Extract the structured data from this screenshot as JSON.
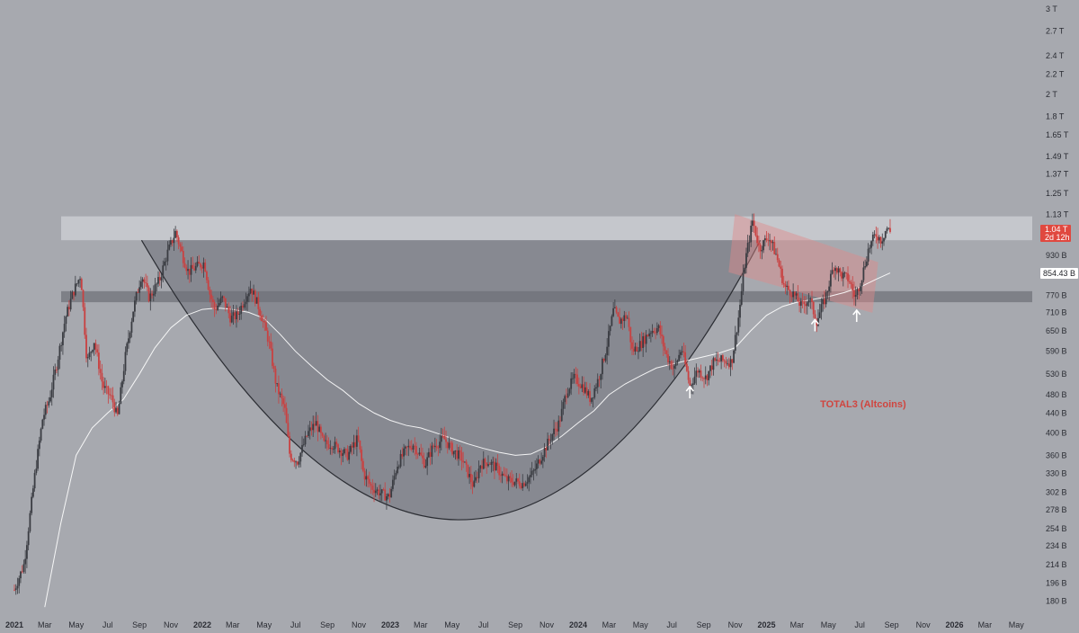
{
  "chart_data": {
    "type": "candlestick",
    "title": "",
    "xlabel": "",
    "ylabel": "",
    "scale": "log",
    "ylim": [
      170,
      3000
    ],
    "xlim": [
      "2021-01",
      "2026-06"
    ],
    "x_ticks": [
      {
        "date": "2021-01",
        "label": "2021",
        "year": true
      },
      {
        "date": "2021-03",
        "label": "Mar"
      },
      {
        "date": "2021-05",
        "label": "May"
      },
      {
        "date": "2021-07",
        "label": "Jul"
      },
      {
        "date": "2021-09",
        "label": "Sep"
      },
      {
        "date": "2021-11",
        "label": "Nov"
      },
      {
        "date": "2022-01",
        "label": "2022",
        "year": true
      },
      {
        "date": "2022-03",
        "label": "Mar"
      },
      {
        "date": "2022-05",
        "label": "May"
      },
      {
        "date": "2022-07",
        "label": "Jul"
      },
      {
        "date": "2022-09",
        "label": "Sep"
      },
      {
        "date": "2022-11",
        "label": "Nov"
      },
      {
        "date": "2023-01",
        "label": "2023",
        "year": true
      },
      {
        "date": "2023-03",
        "label": "Mar"
      },
      {
        "date": "2023-05",
        "label": "May"
      },
      {
        "date": "2023-07",
        "label": "Jul"
      },
      {
        "date": "2023-09",
        "label": "Sep"
      },
      {
        "date": "2023-11",
        "label": "Nov"
      },
      {
        "date": "2024-01",
        "label": "2024",
        "year": true
      },
      {
        "date": "2024-03",
        "label": "Mar"
      },
      {
        "date": "2024-05",
        "label": "May"
      },
      {
        "date": "2024-07",
        "label": "Jul"
      },
      {
        "date": "2024-09",
        "label": "Sep"
      },
      {
        "date": "2024-11",
        "label": "Nov"
      },
      {
        "date": "2025-01",
        "label": "2025",
        "year": true
      },
      {
        "date": "2025-03",
        "label": "Mar"
      },
      {
        "date": "2025-05",
        "label": "May"
      },
      {
        "date": "2025-07",
        "label": "Jul"
      },
      {
        "date": "2025-09",
        "label": "Sep"
      },
      {
        "date": "2025-11",
        "label": "Nov"
      },
      {
        "date": "2026-01",
        "label": "2026",
        "year": true
      },
      {
        "date": "2026-03",
        "label": "Mar"
      },
      {
        "date": "2026-05",
        "label": "May"
      }
    ],
    "y_ticks": [
      {
        "value": 3000,
        "label": "3 T"
      },
      {
        "value": 2700,
        "label": "2.7 T"
      },
      {
        "value": 2400,
        "label": "2.4 T"
      },
      {
        "value": 2200,
        "label": "2.2 T"
      },
      {
        "value": 2000,
        "label": "2 T"
      },
      {
        "value": 1800,
        "label": "1.8 T"
      },
      {
        "value": 1650,
        "label": "1.65 T"
      },
      {
        "value": 1490,
        "label": "1.49 T"
      },
      {
        "value": 1370,
        "label": "1.37 T"
      },
      {
        "value": 1250,
        "label": "1.25 T"
      },
      {
        "value": 1130,
        "label": "1.13 T"
      },
      {
        "value": 930,
        "label": "930 B"
      },
      {
        "value": 770,
        "label": "770 B"
      },
      {
        "value": 710,
        "label": "710 B"
      },
      {
        "value": 650,
        "label": "650 B"
      },
      {
        "value": 590,
        "label": "590 B"
      },
      {
        "value": 530,
        "label": "530 B"
      },
      {
        "value": 480,
        "label": "480 B"
      },
      {
        "value": 440,
        "label": "440 B"
      },
      {
        "value": 400,
        "label": "400 B"
      },
      {
        "value": 360,
        "label": "360 B"
      },
      {
        "value": 330,
        "label": "330 B"
      },
      {
        "value": 302,
        "label": "302 B"
      },
      {
        "value": 278,
        "label": "278 B"
      },
      {
        "value": 254,
        "label": "254 B"
      },
      {
        "value": 234,
        "label": "234 B"
      },
      {
        "value": 214,
        "label": "214 B"
      },
      {
        "value": 196,
        "label": "196 B"
      },
      {
        "value": 180,
        "label": "180 B"
      }
    ],
    "price_path": [
      [
        "2021-01-01",
        190
      ],
      [
        "2021-01-20",
        215
      ],
      [
        "2021-02-10",
        330
      ],
      [
        "2021-02-25",
        430
      ],
      [
        "2021-03-10",
        470
      ],
      [
        "2021-03-25",
        560
      ],
      [
        "2021-04-10",
        690
      ],
      [
        "2021-04-25",
        780
      ],
      [
        "2021-05-10",
        850
      ],
      [
        "2021-05-22",
        560
      ],
      [
        "2021-06-05",
        620
      ],
      [
        "2021-06-22",
        500
      ],
      [
        "2021-07-10",
        470
      ],
      [
        "2021-07-20",
        430
      ],
      [
        "2021-08-05",
        580
      ],
      [
        "2021-08-20",
        720
      ],
      [
        "2021-09-05",
        850
      ],
      [
        "2021-09-20",
        760
      ],
      [
        "2021-10-10",
        830
      ],
      [
        "2021-10-25",
        940
      ],
      [
        "2021-11-10",
        1040
      ],
      [
        "2021-11-25",
        920
      ],
      [
        "2021-12-05",
        860
      ],
      [
        "2021-12-20",
        880
      ],
      [
        "2022-01-05",
        900
      ],
      [
        "2022-01-15",
        780
      ],
      [
        "2022-01-25",
        720
      ],
      [
        "2022-02-10",
        760
      ],
      [
        "2022-02-25",
        690
      ],
      [
        "2022-03-10",
        700
      ],
      [
        "2022-03-25",
        760
      ],
      [
        "2022-04-05",
        800
      ],
      [
        "2022-04-20",
        730
      ],
      [
        "2022-05-10",
        620
      ],
      [
        "2022-05-25",
        500
      ],
      [
        "2022-06-10",
        450
      ],
      [
        "2022-06-20",
        360
      ],
      [
        "2022-07-05",
        350
      ],
      [
        "2022-07-25",
        400
      ],
      [
        "2022-08-10",
        420
      ],
      [
        "2022-08-25",
        380
      ],
      [
        "2022-09-10",
        380
      ],
      [
        "2022-09-25",
        370
      ],
      [
        "2022-10-10",
        360
      ],
      [
        "2022-10-30",
        390
      ],
      [
        "2022-11-10",
        330
      ],
      [
        "2022-11-25",
        310
      ],
      [
        "2022-12-15",
        300
      ],
      [
        "2022-12-30",
        295
      ],
      [
        "2023-01-15",
        345
      ],
      [
        "2023-02-01",
        370
      ],
      [
        "2023-02-15",
        380
      ],
      [
        "2023-03-10",
        345
      ],
      [
        "2023-03-25",
        375
      ],
      [
        "2023-04-15",
        390
      ],
      [
        "2023-05-01",
        370
      ],
      [
        "2023-05-20",
        355
      ],
      [
        "2023-06-12",
        310
      ],
      [
        "2023-06-25",
        345
      ],
      [
        "2023-07-10",
        350
      ],
      [
        "2023-07-25",
        340
      ],
      [
        "2023-08-15",
        320
      ],
      [
        "2023-08-30",
        318
      ],
      [
        "2023-09-15",
        315
      ],
      [
        "2023-10-05",
        330
      ],
      [
        "2023-10-25",
        365
      ],
      [
        "2023-11-10",
        395
      ],
      [
        "2023-11-25",
        420
      ],
      [
        "2023-12-10",
        490
      ],
      [
        "2023-12-25",
        520
      ],
      [
        "2024-01-10",
        500
      ],
      [
        "2024-01-25",
        470
      ],
      [
        "2024-02-10",
        520
      ],
      [
        "2024-02-25",
        600
      ],
      [
        "2024-03-10",
        720
      ],
      [
        "2024-03-20",
        680
      ],
      [
        "2024-04-05",
        700
      ],
      [
        "2024-04-15",
        590
      ],
      [
        "2024-05-01",
        610
      ],
      [
        "2024-05-20",
        650
      ],
      [
        "2024-06-05",
        660
      ],
      [
        "2024-06-20",
        580
      ],
      [
        "2024-07-05",
        540
      ],
      [
        "2024-07-20",
        600
      ],
      [
        "2024-08-05",
        500
      ],
      [
        "2024-08-20",
        540
      ],
      [
        "2024-09-05",
        520
      ],
      [
        "2024-09-20",
        560
      ],
      [
        "2024-10-05",
        565
      ],
      [
        "2024-10-25",
        560
      ],
      [
        "2024-11-08",
        700
      ],
      [
        "2024-11-20",
        900
      ],
      [
        "2024-12-05",
        1100
      ],
      [
        "2024-12-18",
        960
      ],
      [
        "2025-01-05",
        1020
      ],
      [
        "2025-01-20",
        930
      ],
      [
        "2025-02-05",
        800
      ],
      [
        "2025-02-20",
        780
      ],
      [
        "2025-03-10",
        730
      ],
      [
        "2025-03-25",
        760
      ],
      [
        "2025-04-08",
        680
      ],
      [
        "2025-04-25",
        760
      ],
      [
        "2025-05-12",
        890
      ],
      [
        "2025-05-25",
        850
      ],
      [
        "2025-06-10",
        830
      ],
      [
        "2025-06-22",
        760
      ],
      [
        "2025-07-05",
        840
      ],
      [
        "2025-07-18",
        960
      ],
      [
        "2025-08-01",
        1030
      ],
      [
        "2025-08-12",
        1000
      ],
      [
        "2025-08-22",
        1060
      ],
      [
        "2025-08-29",
        1040
      ]
    ],
    "ma_path": [
      [
        "2021-03-01",
        175
      ],
      [
        "2021-04-01",
        260
      ],
      [
        "2021-05-01",
        360
      ],
      [
        "2021-06-01",
        410
      ],
      [
        "2021-07-01",
        440
      ],
      [
        "2021-08-01",
        470
      ],
      [
        "2021-09-01",
        530
      ],
      [
        "2021-10-01",
        600
      ],
      [
        "2021-11-01",
        660
      ],
      [
        "2021-12-01",
        700
      ],
      [
        "2022-01-01",
        720
      ],
      [
        "2022-02-01",
        725
      ],
      [
        "2022-03-01",
        720
      ],
      [
        "2022-04-01",
        710
      ],
      [
        "2022-05-01",
        690
      ],
      [
        "2022-06-01",
        640
      ],
      [
        "2022-07-01",
        590
      ],
      [
        "2022-08-01",
        550
      ],
      [
        "2022-09-01",
        515
      ],
      [
        "2022-10-01",
        490
      ],
      [
        "2022-11-01",
        460
      ],
      [
        "2022-12-01",
        440
      ],
      [
        "2023-01-01",
        425
      ],
      [
        "2023-02-01",
        415
      ],
      [
        "2023-03-01",
        410
      ],
      [
        "2023-04-01",
        400
      ],
      [
        "2023-05-01",
        390
      ],
      [
        "2023-06-01",
        380
      ],
      [
        "2023-07-01",
        372
      ],
      [
        "2023-08-01",
        365
      ],
      [
        "2023-09-01",
        360
      ],
      [
        "2023-10-01",
        362
      ],
      [
        "2023-11-01",
        375
      ],
      [
        "2023-12-01",
        395
      ],
      [
        "2024-01-01",
        420
      ],
      [
        "2024-02-01",
        445
      ],
      [
        "2024-03-01",
        480
      ],
      [
        "2024-04-01",
        505
      ],
      [
        "2024-05-01",
        525
      ],
      [
        "2024-06-01",
        545
      ],
      [
        "2024-07-01",
        555
      ],
      [
        "2024-08-01",
        565
      ],
      [
        "2024-09-01",
        575
      ],
      [
        "2024-10-01",
        585
      ],
      [
        "2024-11-01",
        600
      ],
      [
        "2024-12-01",
        650
      ],
      [
        "2025-01-01",
        700
      ],
      [
        "2025-02-01",
        730
      ],
      [
        "2025-03-01",
        745
      ],
      [
        "2025-04-01",
        755
      ],
      [
        "2025-05-01",
        765
      ],
      [
        "2025-06-01",
        780
      ],
      [
        "2025-07-01",
        800
      ],
      [
        "2025-08-01",
        830
      ],
      [
        "2025-08-29",
        856
      ]
    ],
    "cup": {
      "left": [
        "2021-09-05",
        1000
      ],
      "bottom": [
        "2023-05-15",
        265
      ],
      "right": [
        "2024-12-20",
        1000
      ]
    },
    "zones": [
      {
        "name": "resistance",
        "from": 1000,
        "to": 1120,
        "start": "2021-01-01",
        "end": "2026-06-01"
      },
      {
        "name": "support",
        "from": 745,
        "to": 785,
        "start": "2021-01-01",
        "end": "2026-06-01"
      }
    ],
    "channel": {
      "upper_start": [
        "2024-11-01",
        1130
      ],
      "upper_end": [
        "2025-08-05",
        900
      ],
      "lower_start": [
        "2024-10-20",
        860
      ],
      "lower_end": [
        "2025-07-25",
        710
      ]
    },
    "arrows": [
      {
        "date": "2024-08-05",
        "value": 480
      },
      {
        "date": "2025-04-05",
        "value": 660
      },
      {
        "date": "2025-06-25",
        "value": 690
      }
    ],
    "annotation": {
      "text": "TOTAL3 (Altcoins)",
      "date": "2025-04-15",
      "value": 460
    },
    "last_price": {
      "value": 1040,
      "label": "1.04 T",
      "countdown": "2d 12h"
    },
    "ma_value": {
      "value": 854.43,
      "label": "854.43 B"
    },
    "colors": {
      "background": "#a7a9af",
      "candle": "#c94141",
      "ma_line": "#ffffff",
      "cup_fill": "#6e7078",
      "resistance_zone": "#c9cacf",
      "support_zone": "#777980",
      "channel": "#e08b8b",
      "annotation": "#d0453f",
      "last_price_tag": "#e0483f"
    }
  }
}
